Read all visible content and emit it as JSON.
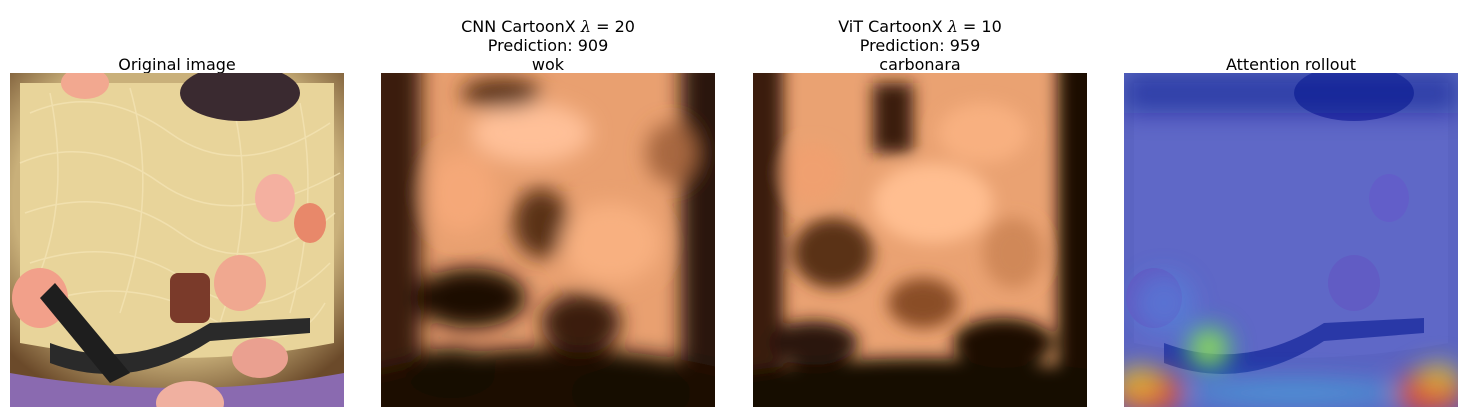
{
  "panels": [
    {
      "title_lines": [
        "Original image"
      ]
    },
    {
      "title_pre": "CNN CartoonX ",
      "lambda_symbol": "λ",
      "lambda_eq": " = 20",
      "title_lines": [
        "Prediction: 909",
        "wok"
      ]
    },
    {
      "title_pre": "ViT CartoonX ",
      "lambda_symbol": "λ",
      "lambda_eq": " = 10",
      "title_lines": [
        "Prediction: 959",
        "carbonara"
      ]
    },
    {
      "title_lines": [
        "Attention rollout"
      ]
    }
  ],
  "colors": {
    "pasta": "#e8d49a",
    "plate_rim": "#6b4a2a",
    "tablecloth": "#8a6ab0",
    "copper_light": "#f0a878",
    "copper_dark": "#1a0d05",
    "rollout_blue": "#2a3fd8",
    "rollout_hot": "#e8402a"
  }
}
